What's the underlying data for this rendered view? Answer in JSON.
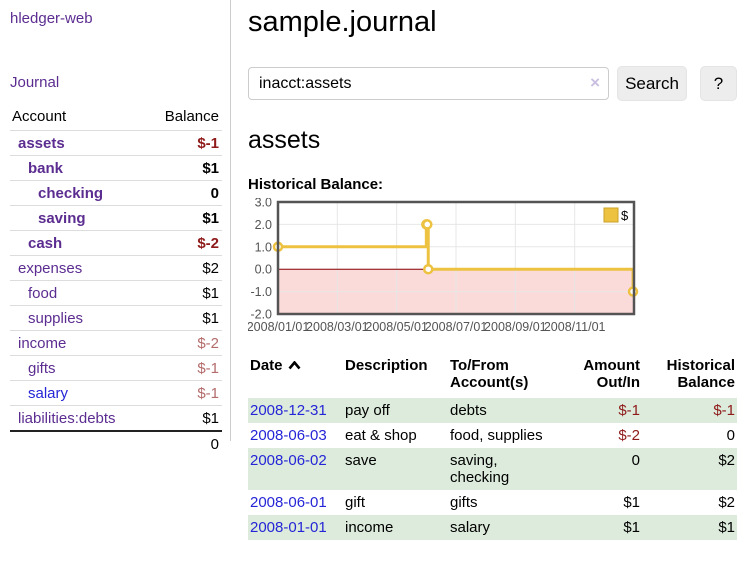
{
  "app": {
    "name": "hledger-web"
  },
  "sidebar": {
    "title": "hledger-web",
    "journal_label": "Journal",
    "accounts_table": {
      "headers": {
        "account": "Account",
        "balance": "Balance"
      },
      "rows": [
        {
          "name": "assets",
          "balance": "$-1",
          "indent": 1,
          "bold": true,
          "balance_tone": "neg-strong"
        },
        {
          "name": "bank",
          "balance": "$1",
          "indent": 2,
          "bold": true,
          "balance_tone": "normal"
        },
        {
          "name": "checking",
          "balance": "0",
          "indent": 3,
          "bold": true,
          "balance_tone": "normal"
        },
        {
          "name": "saving",
          "balance": "$1",
          "indent": 3,
          "bold": true,
          "balance_tone": "normal"
        },
        {
          "name": "cash",
          "balance": "$-2",
          "indent": 2,
          "bold": true,
          "balance_tone": "neg-strong"
        },
        {
          "name": "expenses",
          "balance": "$2",
          "indent": 1,
          "bold": false,
          "balance_tone": "normal"
        },
        {
          "name": "food",
          "balance": "$1",
          "indent": 2,
          "bold": false,
          "balance_tone": "normal"
        },
        {
          "name": "supplies",
          "balance": "$1",
          "indent": 2,
          "bold": false,
          "balance_tone": "normal"
        },
        {
          "name": "income",
          "balance": "$-2",
          "indent": 1,
          "bold": false,
          "balance_tone": "neg-soft"
        },
        {
          "name": "gifts",
          "balance": "$-1",
          "indent": 2,
          "bold": false,
          "balance_tone": "neg-soft"
        },
        {
          "name": "salary",
          "balance": "$-1",
          "indent": 2,
          "bold": false,
          "balance_tone": "neg-soft",
          "link_color": "blue"
        },
        {
          "name": "liabilities:debts",
          "balance": "$1",
          "indent": 1,
          "bold": false,
          "balance_tone": "normal"
        }
      ],
      "total": "0"
    }
  },
  "main": {
    "title": "sample.journal",
    "search": {
      "value": "inacct:assets",
      "clear_icon": "×",
      "button_label": "Search",
      "help_label": "?"
    },
    "section_heading": "assets",
    "register_table": {
      "headers": {
        "date": "Date",
        "sort_indicator": "ascending",
        "description": "Description",
        "accounts": "To/From\nAccount(s)",
        "amount": "Amount\nOut/In",
        "balance": "Historical\nBalance"
      },
      "rows": [
        {
          "date": "2008-12-31",
          "description": "pay off",
          "accounts": "debts",
          "amount": "$-1",
          "amount_negative": true,
          "balance": "$-1",
          "balance_negative": true
        },
        {
          "date": "2008-06-03",
          "description": "eat & shop",
          "accounts": "food, supplies",
          "amount": "$-2",
          "amount_negative": true,
          "balance": "0",
          "balance_negative": false
        },
        {
          "date": "2008-06-02",
          "description": "save",
          "accounts": "saving,\nchecking",
          "amount": "0",
          "amount_negative": false,
          "balance": "$2",
          "balance_negative": false
        },
        {
          "date": "2008-06-01",
          "description": "gift",
          "accounts": "gifts",
          "amount": "$1",
          "amount_negative": false,
          "balance": "$2",
          "balance_negative": false
        },
        {
          "date": "2008-01-01",
          "description": "income",
          "accounts": "salary",
          "amount": "$1",
          "amount_negative": false,
          "balance": "$1",
          "balance_negative": false
        }
      ]
    }
  },
  "chart_data": {
    "type": "line",
    "title": "Historical Balance:",
    "step": true,
    "series": [
      {
        "name": "$",
        "color": "#edc240",
        "points": [
          [
            "2008-01-01",
            1
          ],
          [
            "2008-06-01",
            2
          ],
          [
            "2008-06-02",
            2
          ],
          [
            "2008-06-03",
            0
          ],
          [
            "2008-12-31",
            -1
          ]
        ]
      }
    ],
    "x_ticks": [
      "2008/01/01",
      "2008/03/01",
      "2008/05/01",
      "2008/07/01",
      "2008/09/01",
      "2008/11/01"
    ],
    "y_ticks": [
      3.0,
      2.0,
      1.0,
      0.0,
      -1.0,
      -2.0
    ],
    "ylim": [
      -2,
      3
    ],
    "xlim": [
      "2008-01-01",
      "2009-01-01"
    ],
    "grid": true,
    "legend": {
      "position": "top-right",
      "label": "$",
      "swatch_color": "#edc240"
    },
    "negative_region_color": "#fbdada",
    "zero_line_color": "#8b0000",
    "border_color": "#545454",
    "tick_label_color": "#545454"
  }
}
